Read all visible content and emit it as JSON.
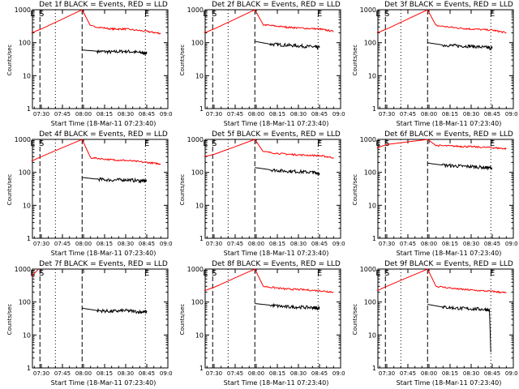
{
  "common": {
    "ylabel": "Counts/sec",
    "xlabel": "Start Time (18-Mar-11 07:23:40)",
    "x_ticks": [
      "07:30",
      "07:45",
      "08:00",
      "08:15",
      "08:30",
      "08:45",
      "09:00"
    ],
    "y_ticks": [
      "1",
      "10",
      "100",
      "1000"
    ],
    "markers": {
      "S": "S",
      "E": "E"
    }
  },
  "colors": {
    "events": "#000000",
    "lld": "#ff0000"
  },
  "chart_data": [
    {
      "type": "line",
      "title": "Det 1f BLACK = Events, RED = LLD",
      "xlabel": "Start Time (18-Mar-11 07:23:40)",
      "ylabel": "Counts/sec",
      "xlim": [
        "07:23:40",
        "09:00"
      ],
      "ylim": [
        1,
        1000
      ],
      "yscale": "log",
      "series": [
        {
          "name": "Events",
          "color": "#000000",
          "x": [
            "07:59",
            "08:10",
            "08:20",
            "08:30",
            "08:40",
            "08:45"
          ],
          "values": [
            60,
            55,
            52,
            55,
            50,
            48
          ]
        },
        {
          "name": "LLD",
          "color": "#ff0000",
          "x": [
            "07:23",
            "07:30",
            "07:59",
            "08:05",
            "08:20",
            "08:30",
            "08:45",
            "08:55"
          ],
          "values": [
            200,
            260,
            1000,
            320,
            260,
            260,
            220,
            190
          ]
        }
      ]
    },
    {
      "type": "line",
      "title": "Det 2f BLACK = Events, RED = LLD",
      "xlabel": "Start Time (18-Mar-11 07:23:40)",
      "ylabel": "Counts/sec",
      "xlim": [
        "07:23:40",
        "09:00"
      ],
      "ylim": [
        1,
        1000
      ],
      "yscale": "log",
      "series": [
        {
          "name": "Events",
          "color": "#000000",
          "x": [
            "07:59",
            "08:10",
            "08:20",
            "08:30",
            "08:40",
            "08:45"
          ],
          "values": [
            110,
            90,
            85,
            80,
            75,
            70
          ]
        },
        {
          "name": "LLD",
          "color": "#ff0000",
          "x": [
            "07:23",
            "07:30",
            "07:59",
            "08:05",
            "08:20",
            "08:30",
            "08:45",
            "08:55"
          ],
          "values": [
            200,
            260,
            1000,
            350,
            300,
            280,
            260,
            220
          ]
        }
      ]
    },
    {
      "type": "line",
      "title": "Det 3f BLACK = Events, RED = LLD",
      "xlabel": "Start Time (18-Mar-11 07:23:40)",
      "ylabel": "Counts/sec",
      "xlim": [
        "07:23:40",
        "09:00"
      ],
      "ylim": [
        1,
        1000
      ],
      "yscale": "log",
      "series": [
        {
          "name": "Events",
          "color": "#000000",
          "x": [
            "07:59",
            "08:10",
            "08:20",
            "08:30",
            "08:40",
            "08:45"
          ],
          "values": [
            100,
            85,
            80,
            78,
            72,
            68
          ]
        },
        {
          "name": "LLD",
          "color": "#ff0000",
          "x": [
            "07:23",
            "07:30",
            "07:59",
            "08:05",
            "08:20",
            "08:30",
            "08:45",
            "08:55"
          ],
          "values": [
            200,
            260,
            1000,
            330,
            280,
            260,
            240,
            200
          ]
        }
      ]
    },
    {
      "type": "line",
      "title": "Det 4f BLACK = Events, RED = LLD",
      "xlabel": "Start Time (18-Mar-11 07:23:40)",
      "ylabel": "Counts/sec",
      "xlim": [
        "07:23:40",
        "09:00"
      ],
      "ylim": [
        1,
        1000
      ],
      "yscale": "log",
      "series": [
        {
          "name": "Events",
          "color": "#000000",
          "x": [
            "07:59",
            "08:10",
            "08:20",
            "08:30",
            "08:40",
            "08:45"
          ],
          "values": [
            70,
            62,
            58,
            60,
            55,
            55
          ]
        },
        {
          "name": "LLD",
          "color": "#ff0000",
          "x": [
            "07:23",
            "07:30",
            "07:59",
            "08:05",
            "08:20",
            "08:30",
            "08:45",
            "08:55"
          ],
          "values": [
            220,
            300,
            1000,
            280,
            240,
            230,
            200,
            180
          ]
        }
      ]
    },
    {
      "type": "line",
      "title": "Det 5f BLACK = Events, RED = LLD",
      "xlabel": "Start Time (18-Mar-11 07:23:40)",
      "ylabel": "Counts/sec",
      "xlim": [
        "07:23:40",
        "09:00"
      ],
      "ylim": [
        1,
        1000
      ],
      "yscale": "log",
      "series": [
        {
          "name": "Events",
          "color": "#000000",
          "x": [
            "07:59",
            "08:10",
            "08:20",
            "08:30",
            "08:40",
            "08:45"
          ],
          "values": [
            140,
            120,
            110,
            105,
            100,
            95
          ]
        },
        {
          "name": "LLD",
          "color": "#ff0000",
          "x": [
            "07:23",
            "07:30",
            "07:59",
            "08:05",
            "08:20",
            "08:30",
            "08:45",
            "08:55"
          ],
          "values": [
            300,
            350,
            1000,
            420,
            360,
            340,
            320,
            280
          ]
        }
      ]
    },
    {
      "type": "line",
      "title": "Det 6f BLACK = Events, RED = LLD",
      "xlabel": "Start Time (18-Mar-11 07:23:40)",
      "ylabel": "Counts/sec",
      "xlim": [
        "07:23:40",
        "09:00"
      ],
      "ylim": [
        1,
        1000
      ],
      "yscale": "log",
      "series": [
        {
          "name": "Events",
          "color": "#000000",
          "x": [
            "07:59",
            "08:10",
            "08:20",
            "08:30",
            "08:40",
            "08:45"
          ],
          "values": [
            190,
            165,
            155,
            150,
            140,
            135
          ]
        },
        {
          "name": "LLD",
          "color": "#ff0000",
          "x": [
            "07:23",
            "07:30",
            "07:59",
            "08:05",
            "08:20",
            "08:30",
            "08:45",
            "08:55"
          ],
          "values": [
            550,
            700,
            1000,
            650,
            620,
            600,
            560,
            520
          ]
        }
      ]
    },
    {
      "type": "line",
      "title": "Det 7f BLACK = Events, RED = LLD",
      "xlabel": "Start Time (18-Mar-11 07:23:40)",
      "ylabel": "Counts/sec",
      "xlim": [
        "07:23:40",
        "09:00"
      ],
      "ylim": [
        1,
        1000
      ],
      "yscale": "log",
      "series": [
        {
          "name": "Events",
          "color": "#000000",
          "x": [
            "07:59",
            "08:10",
            "08:20",
            "08:30",
            "08:40",
            "08:45"
          ],
          "values": [
            65,
            55,
            52,
            55,
            50,
            50
          ]
        },
        {
          "name": "LLD",
          "color": "#ff0000",
          "x": [
            "07:23",
            "07:28"
          ],
          "values": [
            600,
            1000
          ]
        }
      ]
    },
    {
      "type": "line",
      "title": "Det 8f BLACK = Events, RED = LLD",
      "xlabel": "Start Time (18-Mar-11 07:23:40)",
      "ylabel": "Counts/sec",
      "xlim": [
        "07:23:40",
        "09:00"
      ],
      "ylim": [
        1,
        1000
      ],
      "yscale": "log",
      "series": [
        {
          "name": "Events",
          "color": "#000000",
          "x": [
            "07:59",
            "08:10",
            "08:20",
            "08:30",
            "08:40",
            "08:45"
          ],
          "values": [
            90,
            80,
            72,
            70,
            68,
            65
          ]
        },
        {
          "name": "LLD",
          "color": "#ff0000",
          "x": [
            "07:23",
            "07:30",
            "07:59",
            "08:05",
            "08:20",
            "08:30",
            "08:45",
            "08:55"
          ],
          "values": [
            220,
            280,
            1000,
            300,
            250,
            240,
            220,
            200
          ]
        }
      ]
    },
    {
      "type": "line",
      "title": "Det 9f BLACK = Events, RED = LLD",
      "xlabel": "Start Time (18-Mar-11 07:23:40)",
      "ylabel": "Counts/sec",
      "xlim": [
        "07:23:40",
        "09:00"
      ],
      "ylim": [
        1,
        1000
      ],
      "yscale": "log",
      "series": [
        {
          "name": "Events",
          "color": "#000000",
          "x": [
            "07:59",
            "08:10",
            "08:20",
            "08:30",
            "08:40",
            "08:43",
            "08:44"
          ],
          "values": [
            85,
            70,
            65,
            62,
            60,
            55,
            3
          ]
        },
        {
          "name": "LLD",
          "color": "#ff0000",
          "x": [
            "07:23",
            "07:30",
            "07:59",
            "08:05",
            "08:20",
            "08:30",
            "08:45",
            "08:55"
          ],
          "values": [
            220,
            300,
            1000,
            300,
            250,
            230,
            210,
            190
          ]
        }
      ]
    }
  ]
}
